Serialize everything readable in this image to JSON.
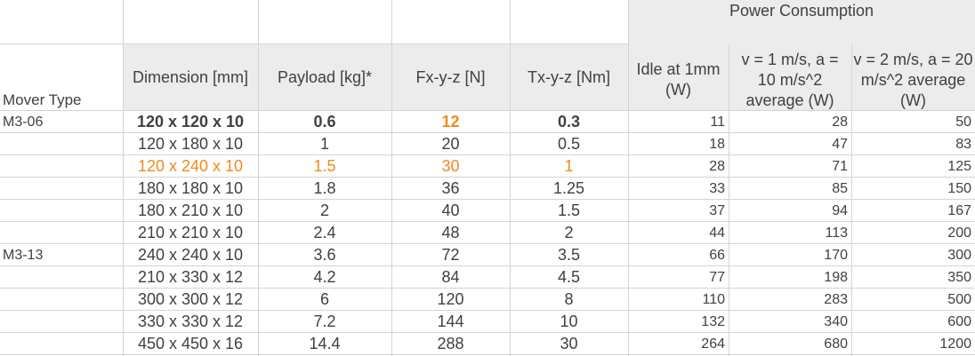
{
  "table": {
    "group_header": "Power Consumption",
    "mover_type_label": "Mover Type",
    "columns": {
      "dimension": "Dimension [mm]",
      "payload": "Payload [kg]*",
      "force": "Fx-y-z [N]",
      "torque": "Tx-y-z [Nm]",
      "idle": "Idle at 1mm (W)",
      "v1": "v = 1 m/s, a = 10 m/s^2 average (W)",
      "v2": "v = 2 m/s, a = 20 m/s^2 average (W)"
    },
    "rows": [
      {
        "mover": "M3-06",
        "dimension": "120 x 120 x 10",
        "payload": "0.6",
        "force": "12",
        "torque": "0.3",
        "idle": "11",
        "v1": "28",
        "v2": "50",
        "style": "bold"
      },
      {
        "mover": "",
        "dimension": "120 x 180 x 10",
        "payload": "1",
        "force": "20",
        "torque": "0.5",
        "idle": "18",
        "v1": "47",
        "v2": "83",
        "style": ""
      },
      {
        "mover": "",
        "dimension": "120 x 240 x 10",
        "payload": "1.5",
        "force": "30",
        "torque": "1",
        "idle": "28",
        "v1": "71",
        "v2": "125",
        "style": "orange"
      },
      {
        "mover": "",
        "dimension": "180 x 180 x 10",
        "payload": "1.8",
        "force": "36",
        "torque": "1.25",
        "idle": "33",
        "v1": "85",
        "v2": "150",
        "style": ""
      },
      {
        "mover": "",
        "dimension": "180 x 210 x 10",
        "payload": "2",
        "force": "40",
        "torque": "1.5",
        "idle": "37",
        "v1": "94",
        "v2": "167",
        "style": ""
      },
      {
        "mover": "",
        "dimension": "210 x 210 x 10",
        "payload": "2.4",
        "force": "48",
        "torque": "2",
        "idle": "44",
        "v1": "113",
        "v2": "200",
        "style": ""
      },
      {
        "mover": "M3-13",
        "dimension": "240 x 240 x 10",
        "payload": "3.6",
        "force": "72",
        "torque": "3.5",
        "idle": "66",
        "v1": "170",
        "v2": "300",
        "style": ""
      },
      {
        "mover": "",
        "dimension": "210 x 330 x 12",
        "payload": "4.2",
        "force": "84",
        "torque": "4.5",
        "idle": "77",
        "v1": "198",
        "v2": "350",
        "style": ""
      },
      {
        "mover": "",
        "dimension": "300 x 300 x 12",
        "payload": "6",
        "force": "120",
        "torque": "8",
        "idle": "110",
        "v1": "283",
        "v2": "500",
        "style": ""
      },
      {
        "mover": "",
        "dimension": "330 x 330 x 12",
        "payload": "7.2",
        "force": "144",
        "torque": "10",
        "idle": "132",
        "v1": "340",
        "v2": "600",
        "style": ""
      },
      {
        "mover": "",
        "dimension": "450 x 450 x 16",
        "payload": "14.4",
        "force": "288",
        "torque": "30",
        "idle": "264",
        "v1": "680",
        "v2": "1200",
        "style": ""
      }
    ]
  },
  "colors": {
    "highlight": "#f08a1c",
    "header_fill": "#ececec",
    "text": "#404040",
    "grid": "#d4d4d4"
  }
}
